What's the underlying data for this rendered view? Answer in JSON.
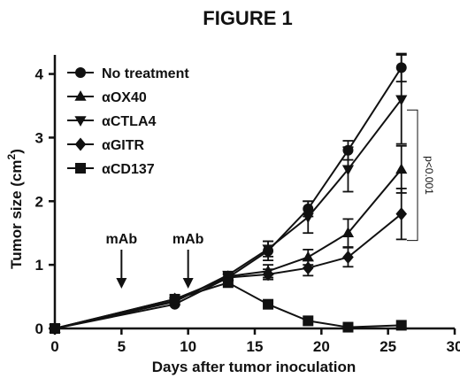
{
  "chart_data": {
    "type": "line",
    "title": "FIGURE 1",
    "xlabel": "Days after tumor inoculation",
    "ylabel_main": "Tumor size (cm",
    "ylabel_sup": "2",
    "ylabel_close": ")",
    "xlim": [
      0,
      30
    ],
    "ylim": [
      0,
      4.3
    ],
    "x_ticks": [
      0,
      5,
      10,
      15,
      20,
      25,
      30
    ],
    "y_ticks": [
      0,
      1,
      2,
      3,
      4
    ],
    "grid": false,
    "legend_position": "top-left",
    "series": [
      {
        "name": "No treatment",
        "marker": "circle",
        "points": [
          {
            "x": 0,
            "y": 0.0,
            "err": 0
          },
          {
            "x": 9,
            "y": 0.38,
            "err": 0
          },
          {
            "x": 13,
            "y": 0.8,
            "err": 0.05
          },
          {
            "x": 16,
            "y": 1.22,
            "err": 0.15
          },
          {
            "x": 19,
            "y": 1.88,
            "err": 0.12
          },
          {
            "x": 22,
            "y": 2.8,
            "err": 0.15
          },
          {
            "x": 26,
            "y": 4.1,
            "err": 0.22
          }
        ]
      },
      {
        "name": "αOX40",
        "marker": "triangle-up",
        "points": [
          {
            "x": 0,
            "y": 0.0,
            "err": 0
          },
          {
            "x": 9,
            "y": 0.43,
            "err": 0
          },
          {
            "x": 13,
            "y": 0.82,
            "err": 0.05
          },
          {
            "x": 16,
            "y": 0.9,
            "err": 0.1
          },
          {
            "x": 19,
            "y": 1.12,
            "err": 0.12
          },
          {
            "x": 22,
            "y": 1.5,
            "err": 0.22
          },
          {
            "x": 26,
            "y": 2.5,
            "err": 0.37
          }
        ]
      },
      {
        "name": "αCTLA4",
        "marker": "triangle-down",
        "points": [
          {
            "x": 0,
            "y": 0.0,
            "err": 0
          },
          {
            "x": 9,
            "y": 0.42,
            "err": 0
          },
          {
            "x": 13,
            "y": 0.84,
            "err": 0.05
          },
          {
            "x": 16,
            "y": 1.25,
            "err": 0.12
          },
          {
            "x": 19,
            "y": 1.75,
            "err": 0.25
          },
          {
            "x": 22,
            "y": 2.5,
            "err": 0.35
          },
          {
            "x": 26,
            "y": 3.6,
            "err": 0.7
          }
        ]
      },
      {
        "name": "αGITR",
        "marker": "diamond",
        "points": [
          {
            "x": 0,
            "y": 0.0,
            "err": 0
          },
          {
            "x": 9,
            "y": 0.46,
            "err": 0
          },
          {
            "x": 13,
            "y": 0.8,
            "err": 0.05
          },
          {
            "x": 16,
            "y": 0.85,
            "err": 0.08
          },
          {
            "x": 19,
            "y": 0.95,
            "err": 0.12
          },
          {
            "x": 22,
            "y": 1.12,
            "err": 0.15
          },
          {
            "x": 26,
            "y": 1.8,
            "err": 0.4
          }
        ]
      },
      {
        "name": "αCD137",
        "marker": "square",
        "points": [
          {
            "x": 0,
            "y": 0.0,
            "err": 0
          },
          {
            "x": 9,
            "y": 0.46,
            "err": 0
          },
          {
            "x": 13,
            "y": 0.72,
            "err": 0
          },
          {
            "x": 16,
            "y": 0.38,
            "err": 0
          },
          {
            "x": 19,
            "y": 0.12,
            "err": 0
          },
          {
            "x": 22,
            "y": 0.02,
            "err": 0
          },
          {
            "x": 26,
            "y": 0.05,
            "err": 0
          }
        ]
      }
    ],
    "annotations": [
      {
        "label": "mAb",
        "x": 5
      },
      {
        "label": "mAb",
        "x": 10
      }
    ],
    "significance": {
      "label": "p<0.001",
      "x": 26,
      "y_from": 1.8,
      "y_to": 3.6
    }
  }
}
